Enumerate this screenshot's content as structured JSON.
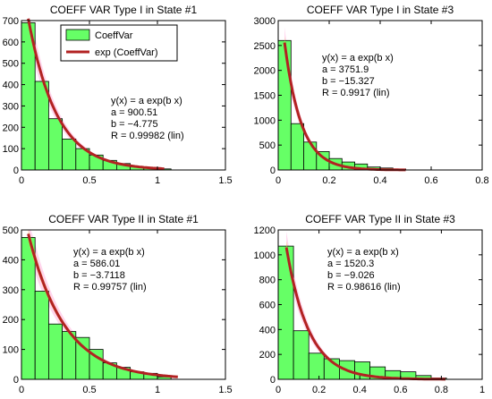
{
  "legend": {
    "bar_label": "CoeffVar",
    "fit_label": "exp (CoeffVar)"
  },
  "colors": {
    "bar_fill": "#66ff66",
    "bar_edge": "#000000",
    "fit_line": "#b22222",
    "band_orange": "#ffd040",
    "band_pink": "#ff88cc"
  },
  "chart_data": [
    {
      "type": "bar",
      "title": "COEFF VAR Type I in State #1",
      "xlabel": "",
      "ylabel": "",
      "xlim": [
        0,
        1.5
      ],
      "ylim": [
        0,
        700
      ],
      "xticks": [
        0,
        0.5,
        1,
        1.5
      ],
      "xtick_labels": [
        "0",
        "0.5",
        "1",
        "1.5"
      ],
      "yticks": [
        0,
        100,
        200,
        300,
        400,
        500,
        600,
        700
      ],
      "ytick_labels": [
        "0",
        "100",
        "200",
        "300",
        "400",
        "500",
        "600",
        "700"
      ],
      "bin_width": 0.1,
      "bins_left": [
        0,
        0.1,
        0.2,
        0.3,
        0.4,
        0.5,
        0.6,
        0.7,
        0.8,
        0.9,
        1.0
      ],
      "values": [
        690,
        415,
        240,
        145,
        100,
        70,
        45,
        30,
        15,
        8,
        5
      ],
      "fit": {
        "a": 900.51,
        "b": -4.775,
        "x_start": 0.05,
        "x_end": 1.05
      },
      "annotation": [
        "y(x) = a exp(b x)",
        "a = 900.51",
        "b = −4.775",
        "R = 0.99982  (lin)"
      ],
      "legend": "top-left"
    },
    {
      "type": "bar",
      "title": "COEFF VAR Type I in State #3",
      "xlabel": "",
      "ylabel": "",
      "xlim": [
        0,
        0.8
      ],
      "ylim": [
        0,
        3000
      ],
      "xticks": [
        0,
        0.2,
        0.4,
        0.6,
        0.8
      ],
      "xtick_labels": [
        "0",
        "0.2",
        "0.4",
        "0.6",
        "0.8"
      ],
      "yticks": [
        0,
        500,
        1000,
        1500,
        2000,
        2500,
        3000
      ],
      "ytick_labels": [
        "0",
        "500",
        "1000",
        "1500",
        "2000",
        "2500",
        "3000"
      ],
      "bin_width": 0.05,
      "bins_left": [
        0,
        0.05,
        0.1,
        0.15,
        0.2,
        0.25,
        0.3,
        0.35,
        0.4,
        0.45
      ],
      "values": [
        2600,
        930,
        560,
        370,
        230,
        160,
        120,
        60,
        40,
        20
      ],
      "fit": {
        "a": 3751.9,
        "b": -15.327,
        "x_start": 0.025,
        "x_end": 0.5
      },
      "annotation": [
        "y(x) = a exp(b x)",
        "a = 3751.9",
        "b = −15.327",
        "R = 0.9917  (lin)"
      ]
    },
    {
      "type": "bar",
      "title": "COEFF VAR Type II in State #1",
      "xlabel": "",
      "ylabel": "",
      "xlim": [
        0,
        1.5
      ],
      "ylim": [
        0,
        500
      ],
      "xticks": [
        0,
        0.5,
        1,
        1.5
      ],
      "xtick_labels": [
        "0",
        "0.5",
        "1",
        "1.5"
      ],
      "yticks": [
        0,
        100,
        200,
        300,
        400,
        500
      ],
      "ytick_labels": [
        "0",
        "100",
        "200",
        "300",
        "400",
        "500"
      ],
      "bin_width": 0.1,
      "bins_left": [
        0,
        0.1,
        0.2,
        0.3,
        0.4,
        0.5,
        0.6,
        0.7,
        0.8,
        0.9,
        1.0
      ],
      "values": [
        475,
        295,
        185,
        160,
        140,
        100,
        55,
        40,
        25,
        20,
        8
      ],
      "fit": {
        "a": 586.01,
        "b": -3.7118,
        "x_start": 0.05,
        "x_end": 1.15
      },
      "annotation": [
        "y(x) = a exp(b x)",
        "a = 586.01",
        "b = −3.7118",
        "R = 0.99757  (lin)"
      ]
    },
    {
      "type": "bar",
      "title": "COEFF VAR Type II in State #3",
      "xlabel": "",
      "ylabel": "",
      "xlim": [
        0,
        1
      ],
      "ylim": [
        0,
        1200
      ],
      "xticks": [
        0,
        0.2,
        0.4,
        0.6,
        0.8,
        1
      ],
      "xtick_labels": [
        "0",
        "0.2",
        "0.4",
        "0.6",
        "0.8",
        "1"
      ],
      "yticks": [
        0,
        200,
        400,
        600,
        800,
        1000,
        1200
      ],
      "ytick_labels": [
        "0",
        "200",
        "400",
        "600",
        "800",
        "1000",
        "1200"
      ],
      "bin_width": 0.075,
      "bins_left": [
        0,
        0.075,
        0.15,
        0.225,
        0.3,
        0.375,
        0.45,
        0.525,
        0.6,
        0.675,
        0.75
      ],
      "values": [
        1070,
        390,
        210,
        165,
        150,
        140,
        100,
        70,
        60,
        30,
        10
      ],
      "fit": {
        "a": 1520.3,
        "b": -9.026,
        "x_start": 0.04,
        "x_end": 0.82
      },
      "annotation": [
        "y(x) = a exp(b x)",
        "a = 1520.3",
        "b = −9.026",
        "R = 0.98616  (lin)"
      ]
    }
  ]
}
